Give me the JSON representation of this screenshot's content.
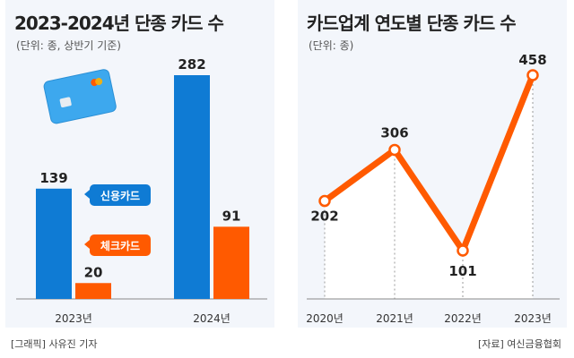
{
  "credit": "[그래픽] 사유진 기자",
  "source": "[자료] 여신금융협회",
  "colors": {
    "credit_card": "#0f7bd4",
    "check_card": "#ff5a00",
    "panel_bg": "#f3f6fb",
    "axis": "#888888"
  },
  "icons": [
    "credit-card-icon"
  ],
  "chart_data": [
    {
      "type": "bar",
      "title": "2023-2024년 단종 카드 수",
      "subtitle": "(단위: 종, 상반기 기준)",
      "categories": [
        "2023년",
        "2024년"
      ],
      "series": [
        {
          "name": "신용카드",
          "values": [
            139,
            282
          ]
        },
        {
          "name": "체크카드",
          "values": [
            20,
            91
          ]
        }
      ],
      "ylim": [
        0,
        282
      ],
      "grid": false,
      "legend_position": "inline next to bars"
    },
    {
      "type": "line",
      "title": "카드업계 연도별 단종 카드 수",
      "subtitle": "(단위: 종)",
      "x": [
        "2020년",
        "2021년",
        "2022년",
        "2023년"
      ],
      "values": [
        202,
        306,
        101,
        458
      ],
      "ylim": [
        101,
        458
      ],
      "grid": false
    }
  ]
}
